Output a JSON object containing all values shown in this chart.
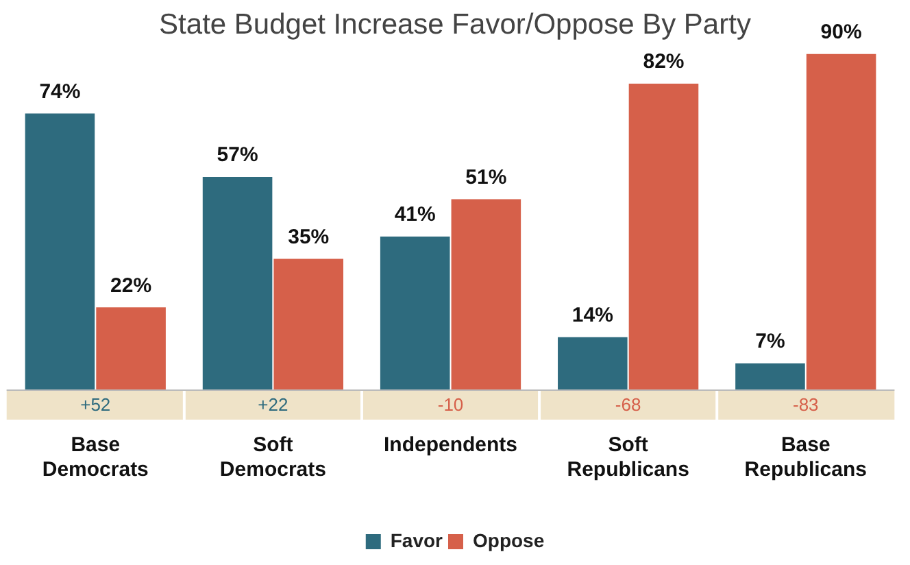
{
  "chart_data": {
    "type": "bar",
    "title": "State Budget Increase Favor/Oppose By Party",
    "categories": [
      "Base Democrats",
      "Soft Democrats",
      "Independents",
      "Soft Republicans",
      "Base Republicans"
    ],
    "series": [
      {
        "name": "Favor",
        "color": "#2e6b7e",
        "values": [
          74,
          57,
          41,
          14,
          7
        ],
        "value_labels": [
          "74%",
          "57%",
          "41%",
          "14%",
          "7%"
        ]
      },
      {
        "name": "Oppose",
        "color": "#d6604a",
        "values": [
          22,
          35,
          51,
          82,
          90
        ],
        "value_labels": [
          "22%",
          "35%",
          "51%",
          "82%",
          "90%"
        ]
      }
    ],
    "grid": false,
    "legend": "bottom",
    "tick_labels": "x",
    "annotations": [
      "+52",
      "+22",
      "-10",
      "-68",
      "-83"
    ]
  }
}
